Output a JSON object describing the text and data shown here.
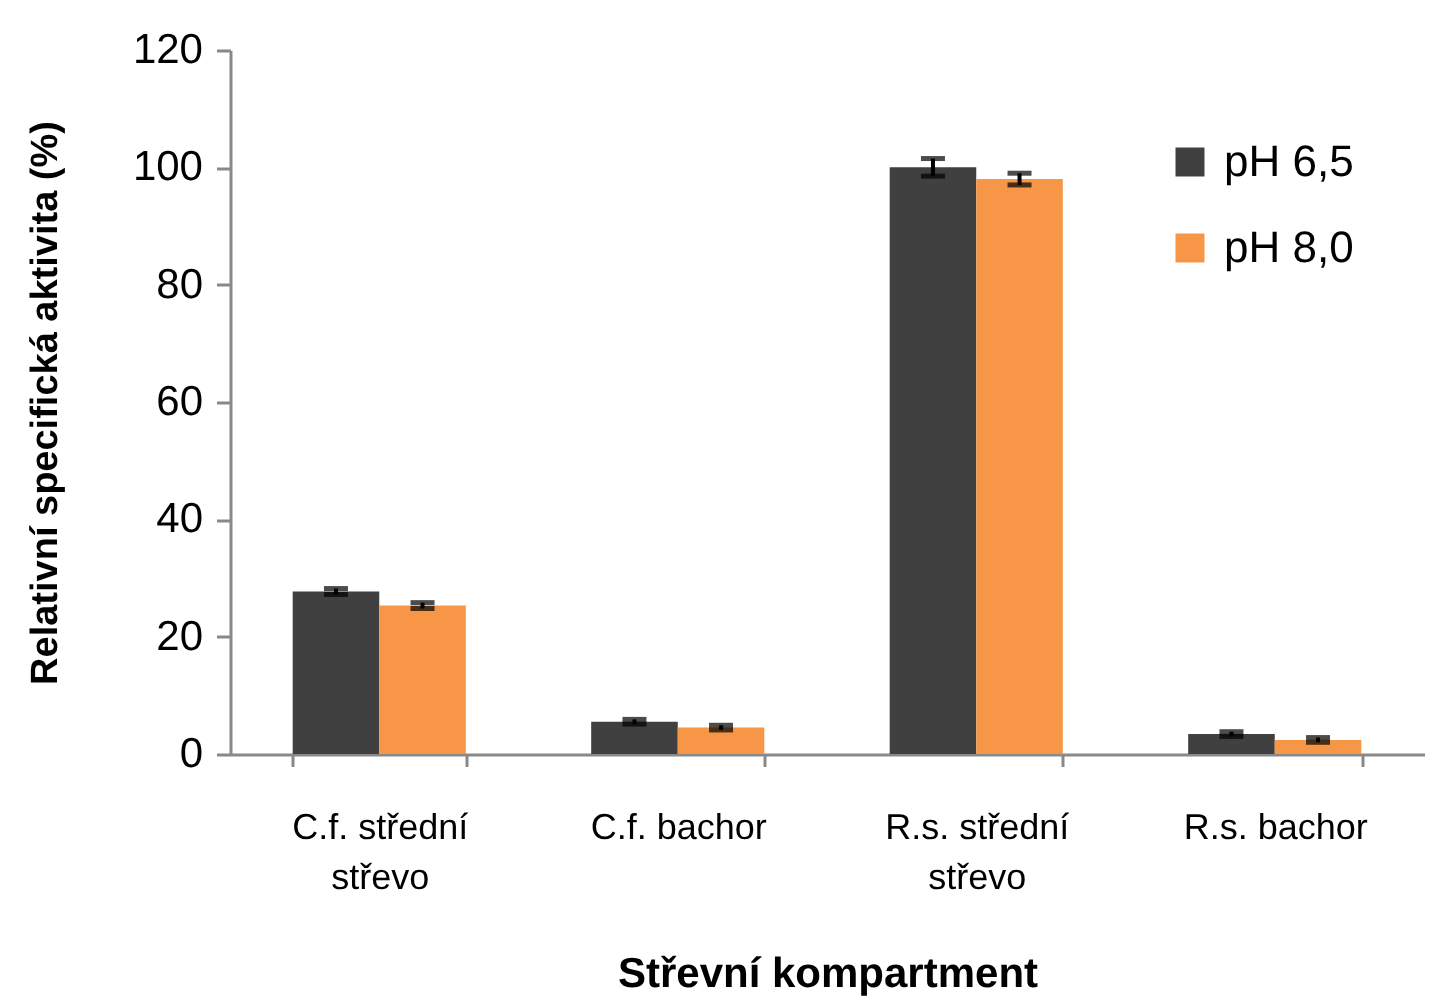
{
  "chart_data": {
    "type": "bar",
    "xlabel": "Střevní kompartment",
    "ylabel": "Relativní specifická aktivita (%)",
    "categories": [
      "C.f. střední střevo",
      "C.f. bachor",
      "R.s. střední střevo",
      "R.s. bachor"
    ],
    "series": [
      {
        "name": "pH 6,5",
        "color": "#404040",
        "values": [
          27.7,
          5.5,
          100,
          3.4
        ],
        "errors": [
          0.5,
          0.4,
          1.5,
          0.4
        ]
      },
      {
        "name": "pH 8,0",
        "color": "#f79646",
        "values": [
          25.3,
          4.5,
          98,
          2.4
        ],
        "errors": [
          0.5,
          0.4,
          1,
          0.4
        ]
      }
    ],
    "ylim": [
      0,
      120
    ],
    "yticks": [
      0,
      20,
      40,
      60,
      80,
      100,
      120
    ],
    "grid": false,
    "legend": "top right"
  }
}
